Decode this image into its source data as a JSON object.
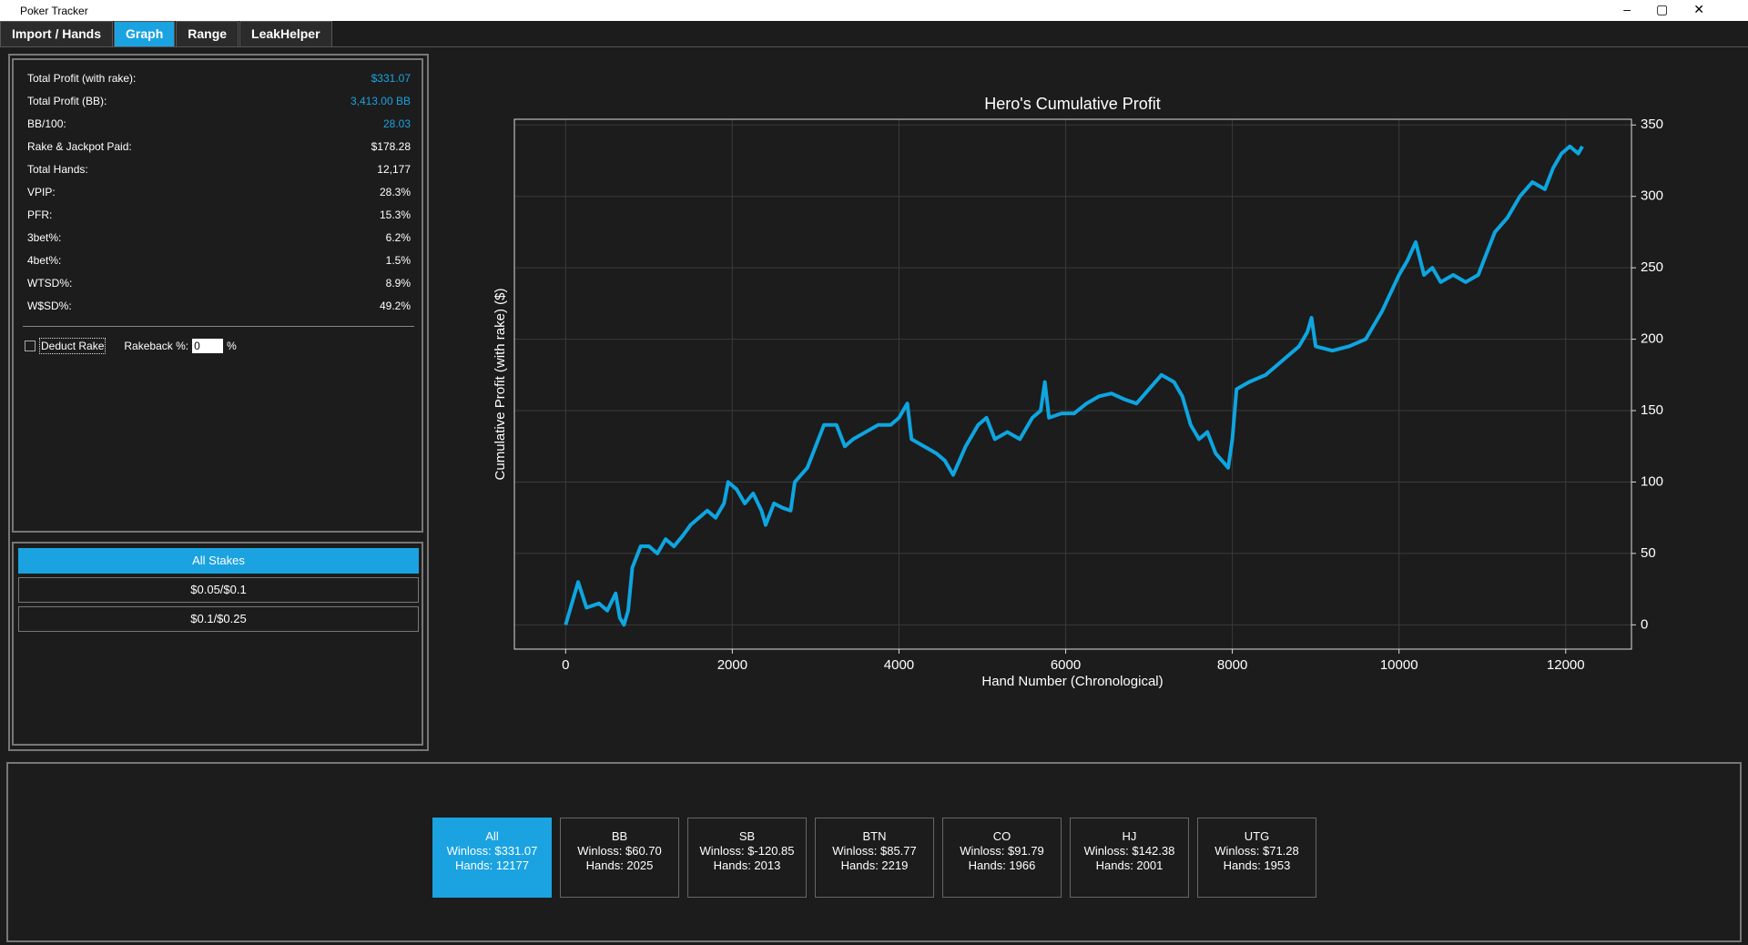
{
  "window": {
    "title": "Poker Tracker"
  },
  "tabs": [
    "Import / Hands",
    "Graph",
    "Range",
    "LeakHelper"
  ],
  "active_tab": 1,
  "stats": [
    {
      "label": "Total Profit (with rake):",
      "value": "$331.07",
      "highlight": true
    },
    {
      "label": "Total Profit (BB):",
      "value": "3,413.00 BB",
      "highlight": true
    },
    {
      "label": "BB/100:",
      "value": "28.03",
      "highlight": true
    },
    {
      "label": "Rake & Jackpot Paid:",
      "value": "$178.28",
      "highlight": false
    },
    {
      "label": "Total Hands:",
      "value": "12,177",
      "highlight": false
    },
    {
      "label": "VPIP:",
      "value": "28.3%",
      "highlight": false
    },
    {
      "label": "PFR:",
      "value": "15.3%",
      "highlight": false
    },
    {
      "label": "3bet%:",
      "value": "6.2%",
      "highlight": false
    },
    {
      "label": "4bet%:",
      "value": "1.5%",
      "highlight": false
    },
    {
      "label": "WTSD%:",
      "value": "8.9%",
      "highlight": false
    },
    {
      "label": "W$SD%:",
      "value": "49.2%",
      "highlight": false
    }
  ],
  "options": {
    "deduct_rake": "Deduct Rake",
    "rakeback_label": "Rakeback %:",
    "rakeback_value": "0",
    "rakeback_unit": "%"
  },
  "stakes": {
    "buttons": [
      "All Stakes",
      "$0.05/$0.1",
      "$0.1/$0.25"
    ],
    "active": 0
  },
  "positions": {
    "active": 0,
    "cards": [
      {
        "name": "All",
        "winloss": "Winloss: $331.07",
        "hands": "Hands: 12177"
      },
      {
        "name": "BB",
        "winloss": "Winloss: $60.70",
        "hands": "Hands: 2025"
      },
      {
        "name": "SB",
        "winloss": "Winloss: $-120.85",
        "hands": "Hands: 2013"
      },
      {
        "name": "BTN",
        "winloss": "Winloss: $85.77",
        "hands": "Hands: 2219"
      },
      {
        "name": "CO",
        "winloss": "Winloss: $91.79",
        "hands": "Hands: 1966"
      },
      {
        "name": "HJ",
        "winloss": "Winloss: $142.38",
        "hands": "Hands: 2001"
      },
      {
        "name": "UTG",
        "winloss": "Winloss: $71.28",
        "hands": "Hands: 1953"
      }
    ]
  },
  "chart_data": {
    "type": "line",
    "title": "Hero's Cumulative Profit",
    "x_label": "Hand Number (Chronological)",
    "y_label": "Cumulative Profit (with rake) ($)",
    "x": [
      0,
      100,
      150,
      250,
      400,
      500,
      600,
      650,
      700,
      750,
      800,
      900,
      1000,
      1100,
      1200,
      1300,
      1400,
      1500,
      1600,
      1700,
      1800,
      1900,
      1950,
      2050,
      2150,
      2250,
      2350,
      2400,
      2500,
      2600,
      2700,
      2750,
      2900,
      3000,
      3100,
      3250,
      3350,
      3450,
      3600,
      3750,
      3900,
      4000,
      4100,
      4150,
      4300,
      4450,
      4550,
      4650,
      4800,
      4950,
      5050,
      5150,
      5300,
      5450,
      5600,
      5700,
      5750,
      5800,
      5950,
      6100,
      6250,
      6400,
      6550,
      6700,
      6850,
      7000,
      7150,
      7300,
      7400,
      7500,
      7600,
      7700,
      7800,
      7950,
      8000,
      8050,
      8200,
      8400,
      8600,
      8800,
      8900,
      8950,
      9000,
      9200,
      9400,
      9600,
      9800,
      10000,
      10100,
      10200,
      10300,
      10400,
      10500,
      10650,
      10800,
      10950,
      11050,
      11150,
      11300,
      11450,
      11600,
      11750,
      11850,
      11950,
      12050,
      12150,
      12200
    ],
    "series": [
      {
        "color": "#0ea5e0",
        "values": [
          0,
          20,
          30,
          12,
          15,
          10,
          22,
          5,
          0,
          10,
          40,
          55,
          55,
          50,
          60,
          55,
          62,
          70,
          75,
          80,
          75,
          85,
          100,
          95,
          85,
          92,
          80,
          70,
          85,
          82,
          80,
          100,
          110,
          125,
          140,
          140,
          125,
          130,
          135,
          140,
          140,
          145,
          155,
          130,
          125,
          120,
          115,
          105,
          125,
          140,
          145,
          130,
          135,
          130,
          145,
          150,
          170,
          145,
          148,
          148,
          155,
          160,
          162,
          158,
          155,
          165,
          175,
          170,
          160,
          140,
          130,
          135,
          120,
          110,
          130,
          165,
          170,
          175,
          185,
          195,
          205,
          215,
          195,
          192,
          195,
          200,
          220,
          245,
          255,
          268,
          245,
          250,
          240,
          245,
          240,
          245,
          260,
          275,
          285,
          300,
          310,
          305,
          320,
          330,
          335,
          330,
          335
        ]
      }
    ],
    "xlim": [
      -615,
      12789
    ],
    "ylim": [
      -17,
      354
    ],
    "xticks": [
      0,
      2000,
      4000,
      6000,
      8000,
      10000,
      12000
    ],
    "yticks": [
      0,
      50,
      100,
      150,
      200,
      250,
      300,
      350
    ],
    "grid": true
  }
}
